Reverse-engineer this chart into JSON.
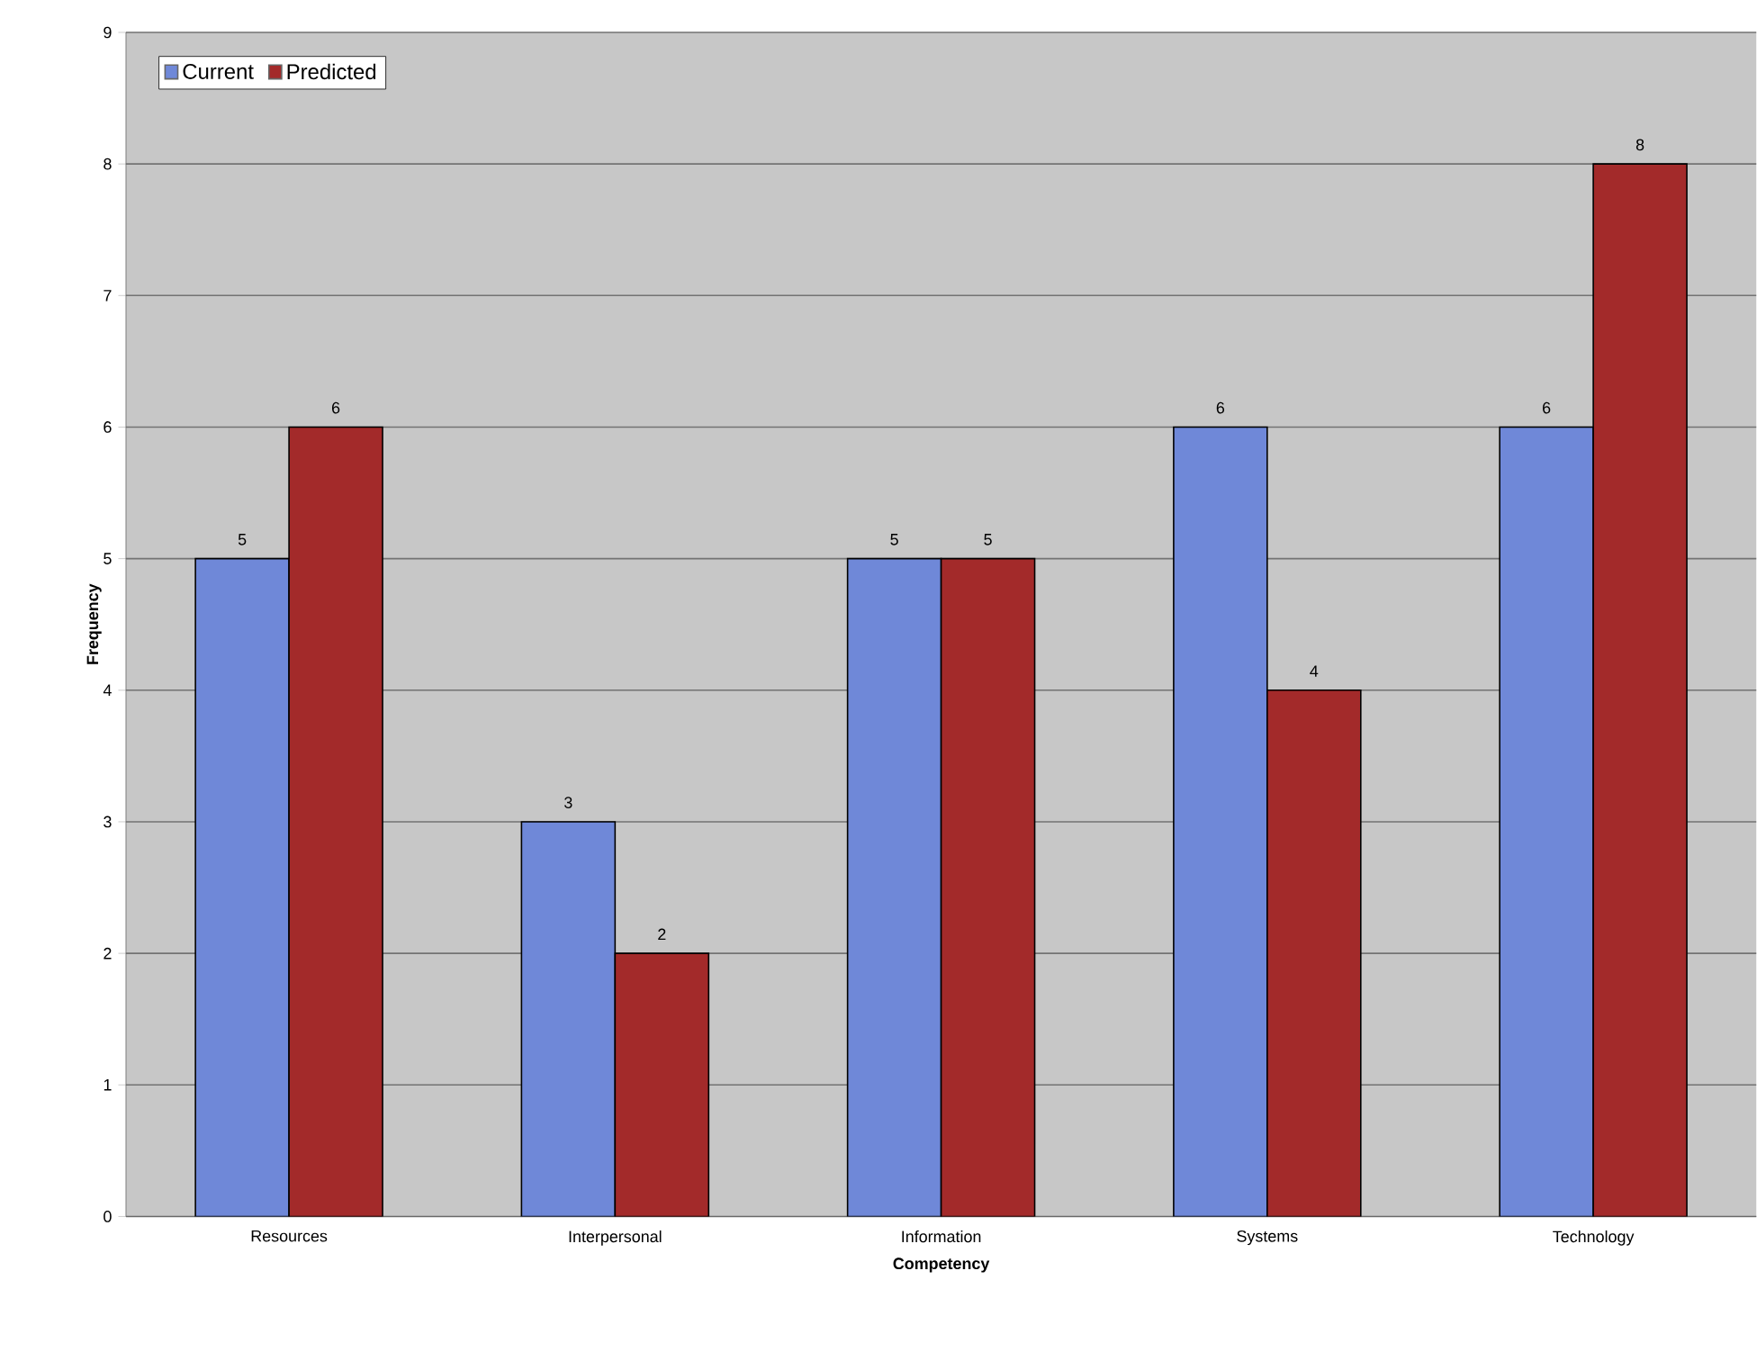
{
  "chart_data": {
    "type": "bar",
    "xlabel": "Competency",
    "ylabel": "Frequency",
    "categories": [
      "Resources",
      "Interpersonal",
      "Information",
      "Systems",
      "Technology"
    ],
    "series": [
      {
        "name": "Current",
        "color": "#6f88d8",
        "values": [
          5,
          3,
          5,
          6,
          6
        ]
      },
      {
        "name": "Predicted",
        "color": "#a32a2a",
        "values": [
          6,
          2,
          5,
          4,
          8
        ]
      }
    ],
    "ylim": [
      0,
      9
    ],
    "yticks": [
      0,
      1,
      2,
      3,
      4,
      5,
      6,
      7,
      8,
      9
    ],
    "grid": "y",
    "legend": "top left",
    "data_labels": true
  }
}
